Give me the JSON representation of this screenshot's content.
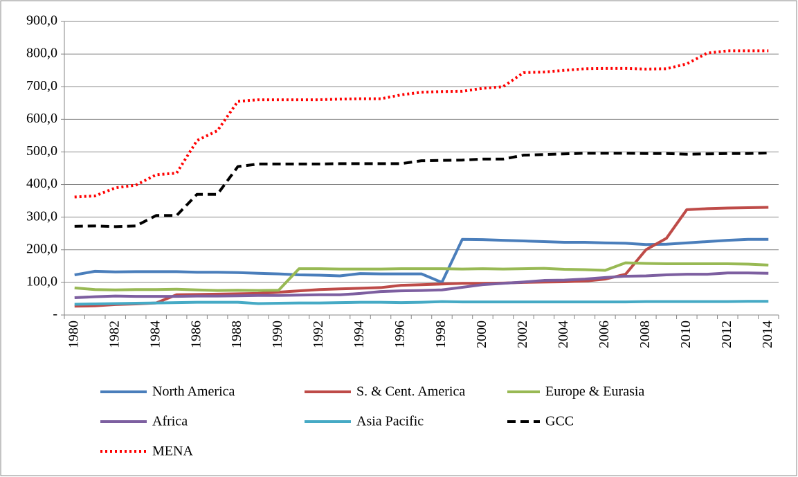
{
  "chart_data": {
    "type": "line",
    "categories": [
      "1980",
      null,
      "1982",
      null,
      "1984",
      null,
      "1986",
      null,
      "1988",
      null,
      "1990",
      null,
      "1992",
      null,
      "1994",
      null,
      "1996",
      null,
      "1998",
      null,
      "2000",
      null,
      "2002",
      null,
      "2004",
      null,
      "2006",
      null,
      "2008",
      null,
      "2010",
      null,
      "2012",
      null,
      "2014"
    ],
    "series": [
      {
        "name": "North America",
        "color": "#4a7ebb",
        "line_style": "solid",
        "values": [
          123,
          134,
          132,
          133,
          133,
          133,
          131,
          131,
          130,
          128,
          126,
          123,
          122,
          120,
          127,
          126,
          126,
          126,
          100,
          232,
          231,
          229,
          227,
          225,
          223,
          223,
          221,
          220,
          216,
          217,
          221,
          225,
          229,
          232,
          232
        ]
      },
      {
        "name": "S. & Cent. America",
        "color": "#be4b48",
        "line_style": "solid",
        "values": [
          27,
          28,
          32,
          34,
          37,
          62,
          63,
          64,
          65,
          66,
          70,
          74,
          78,
          80,
          82,
          84,
          91,
          93,
          95,
          97,
          97,
          98,
          100,
          101,
          102,
          104,
          110,
          125,
          200,
          235,
          323,
          326,
          328,
          329,
          330
        ]
      },
      {
        "name": "Europe & Eurasia",
        "color": "#98b954",
        "line_style": "solid",
        "values": [
          83,
          78,
          77,
          78,
          78,
          79,
          77,
          75,
          76,
          75,
          76,
          142,
          142,
          141,
          141,
          141,
          142,
          142,
          142,
          141,
          142,
          141,
          142,
          143,
          140,
          139,
          137,
          160,
          158,
          157,
          157,
          157,
          157,
          156,
          153
        ]
      },
      {
        "name": "Africa",
        "color": "#7d5fa0",
        "line_style": "solid",
        "values": [
          53,
          56,
          58,
          57,
          57,
          57,
          58,
          58,
          59,
          60,
          60,
          61,
          62,
          62,
          66,
          72,
          74,
          75,
          77,
          85,
          93,
          97,
          101,
          106,
          107,
          110,
          115,
          119,
          120,
          123,
          125,
          125,
          129,
          129,
          128
        ]
      },
      {
        "name": "Asia Pacific",
        "color": "#46aac5",
        "line_style": "solid",
        "values": [
          33,
          34,
          35,
          36,
          37,
          38,
          39,
          39,
          39,
          35,
          36,
          37,
          37,
          38,
          39,
          39,
          38,
          39,
          41,
          40,
          40,
          40,
          40,
          40,
          40,
          40,
          40,
          40,
          41,
          41,
          41,
          41,
          41,
          42,
          42
        ]
      },
      {
        "name": "GCC",
        "color": "#000000",
        "line_style": "dashed",
        "values": [
          272,
          273,
          271,
          273,
          305,
          305,
          370,
          370,
          455,
          463,
          463,
          463,
          463,
          464,
          464,
          464,
          464,
          473,
          474,
          475,
          478,
          478,
          490,
          492,
          494,
          496,
          496,
          496,
          495,
          495,
          493,
          494,
          495,
          495,
          497
        ]
      },
      {
        "name": "MENA",
        "color": "#ff0000",
        "line_style": "dotted",
        "values": [
          362,
          365,
          390,
          398,
          430,
          435,
          535,
          565,
          655,
          660,
          660,
          660,
          660,
          662,
          663,
          663,
          675,
          683,
          685,
          686,
          695,
          700,
          743,
          745,
          750,
          755,
          756,
          756,
          754,
          755,
          770,
          803,
          810,
          810,
          810
        ]
      }
    ],
    "ylim": [
      0,
      900
    ],
    "yticks": [
      {
        "value": 0,
        "label": "-"
      },
      {
        "value": 100,
        "label": "100,0"
      },
      {
        "value": 200,
        "label": "200,0"
      },
      {
        "value": 300,
        "label": "300,0"
      },
      {
        "value": 400,
        "label": "400,0"
      },
      {
        "value": 500,
        "label": "500,0"
      },
      {
        "value": 600,
        "label": "600,0"
      },
      {
        "value": 700,
        "label": "700,0"
      },
      {
        "value": 800,
        "label": "800,0"
      },
      {
        "value": 900,
        "label": "900,0"
      }
    ],
    "grid": true,
    "legend": "bottom"
  }
}
